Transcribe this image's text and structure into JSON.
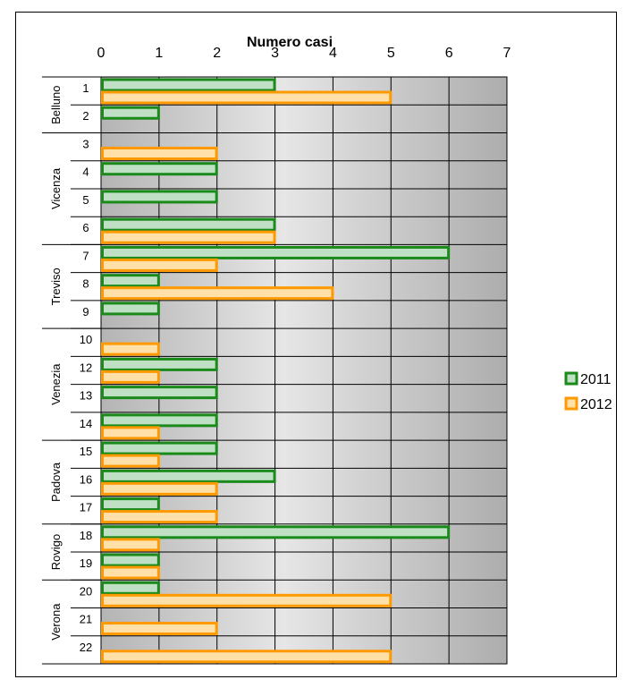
{
  "chart_data": {
    "type": "bar",
    "orientation": "horizontal",
    "title": "Numero casi",
    "xlim": [
      0,
      7
    ],
    "xticks": [
      0,
      1,
      2,
      3,
      4,
      5,
      6,
      7
    ],
    "grid": true,
    "legend_position": "right",
    "categories": [
      "1",
      "2",
      "3",
      "4",
      "5",
      "6",
      "7",
      "8",
      "9",
      "10",
      "12",
      "13",
      "14",
      "15",
      "16",
      "17",
      "18",
      "19",
      "20",
      "21",
      "22"
    ],
    "groups": [
      {
        "label": "Belluno",
        "members": [
          "1",
          "2"
        ]
      },
      {
        "label": "Vicenza",
        "members": [
          "3",
          "4",
          "5",
          "6"
        ]
      },
      {
        "label": "Treviso",
        "members": [
          "7",
          "8",
          "9"
        ]
      },
      {
        "label": "Venezia",
        "members": [
          "10",
          "12",
          "13",
          "14"
        ]
      },
      {
        "label": "Padova",
        "members": [
          "15",
          "16",
          "17"
        ]
      },
      {
        "label": "Rovigo",
        "members": [
          "18",
          "19"
        ]
      },
      {
        "label": "Verona",
        "members": [
          "20",
          "21",
          "22"
        ]
      }
    ],
    "series": [
      {
        "name": "2011",
        "color": "#1a8a1a",
        "fill": "#bfe0c4",
        "values": [
          3,
          1,
          0,
          2,
          2,
          3,
          6,
          1,
          1,
          0,
          2,
          2,
          2,
          2,
          3,
          1,
          6,
          1,
          1,
          0,
          0
        ]
      },
      {
        "name": "2012",
        "color": "#ff9900",
        "fill": "#ffe0a8",
        "values": [
          5,
          0,
          2,
          0,
          0,
          3,
          2,
          4,
          0,
          1,
          1,
          0,
          1,
          1,
          2,
          2,
          1,
          1,
          5,
          2,
          5
        ]
      }
    ]
  }
}
